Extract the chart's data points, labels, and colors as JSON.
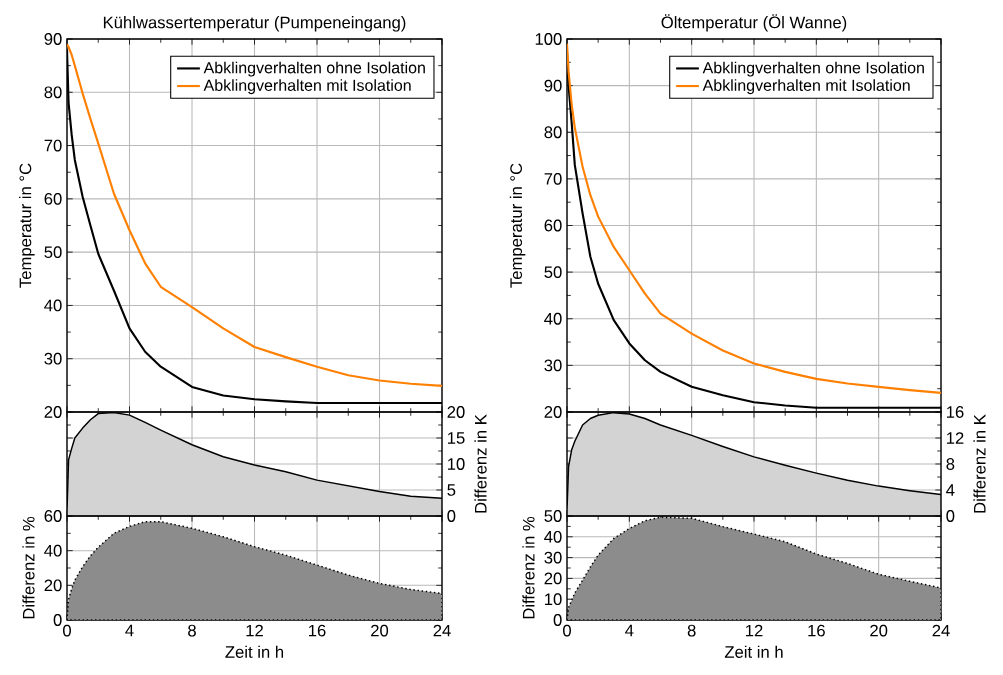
{
  "chart_data": [
    {
      "type": "line",
      "title": "Kühlwassertemperatur (Pumpeneingang)",
      "ylabel": "Temperatur in °C",
      "x": [
        0,
        0.1,
        0.3,
        0.5,
        1,
        1.5,
        2,
        3,
        4,
        5,
        6,
        8,
        10,
        12,
        14,
        16,
        18,
        20,
        22,
        24
      ],
      "xlim": [
        0,
        24
      ],
      "xticks": [
        0,
        4,
        8,
        12,
        16,
        20,
        24
      ],
      "ylim": [
        20,
        90
      ],
      "yticks": [
        20,
        30,
        40,
        50,
        60,
        70,
        80,
        90
      ],
      "tick_labels": "y",
      "grid": true,
      "legend": "top right",
      "series": [
        {
          "name": "Abklingverhalten ohne Isolation",
          "color": "#000000",
          "values": [
            88,
            78,
            72,
            67.3,
            60.4,
            55,
            49.7,
            42.8,
            35.7,
            31.3,
            28.5,
            24.7,
            23.1,
            22.4,
            22,
            21.7,
            21.7,
            21.7,
            21.7,
            21.7
          ]
        },
        {
          "name": "Abklingverhalten mit Isolation",
          "color": "#ff8000",
          "values": [
            89,
            88.5,
            87,
            85,
            79.8,
            75,
            70.4,
            61,
            54.1,
            47.9,
            43.5,
            39.7,
            35.7,
            32.2,
            30.3,
            28.5,
            26.9,
            25.9,
            25.3,
            24.9
          ]
        }
      ]
    },
    {
      "type": "area",
      "ylabel": "Differenz in K",
      "x": [
        0,
        0.1,
        0.3,
        0.5,
        1,
        1.5,
        2,
        3,
        4,
        5,
        6,
        8,
        10,
        12,
        14,
        16,
        18,
        20,
        22,
        24
      ],
      "xlim": [
        0,
        24
      ],
      "xticks": [
        0,
        4,
        8,
        12,
        16,
        20,
        24
      ],
      "ylim": [
        0,
        20
      ],
      "yticks": [
        0,
        5,
        10,
        15,
        20
      ],
      "tick_labels": "y",
      "grid": true,
      "series": [
        {
          "color": "#d3d3d3",
          "values": [
            1,
            10.8,
            13,
            15,
            16.9,
            18.5,
            19.7,
            19.9,
            19.4,
            18,
            16.5,
            13.7,
            11.4,
            9.8,
            8.5,
            6.9,
            5.8,
            4.7,
            3.8,
            3.4
          ]
        }
      ]
    },
    {
      "type": "area",
      "xlabel": "Zeit in h",
      "ylabel": "Differenz in %",
      "x": [
        0,
        0.1,
        0.3,
        0.5,
        1,
        1.5,
        2,
        3,
        4,
        5,
        6,
        8,
        10,
        12,
        14,
        16,
        18,
        20,
        22,
        24
      ],
      "xlim": [
        0,
        24
      ],
      "xticks": [
        0,
        4,
        8,
        12,
        16,
        20,
        24
      ],
      "ylim": [
        0,
        60
      ],
      "yticks": [
        0,
        20,
        40,
        60
      ],
      "grid": true,
      "line_style": "dotted",
      "series": [
        {
          "color": "#8c8c8c",
          "values": [
            0,
            12,
            18,
            23,
            30.7,
            37,
            42,
            50,
            54,
            56.7,
            56.7,
            52.9,
            48,
            42.3,
            37.4,
            31.7,
            25.9,
            21.1,
            17.6,
            15.3
          ]
        }
      ]
    },
    {
      "type": "line",
      "title": "Öltemperatur (Öl Wanne)",
      "ylabel": "Temperatur in °C",
      "x": [
        0,
        0.1,
        0.3,
        0.5,
        1,
        1.5,
        2,
        3,
        4,
        5,
        6,
        8,
        10,
        12,
        14,
        16,
        18,
        20,
        22,
        24
      ],
      "xlim": [
        0,
        24
      ],
      "xticks": [
        0,
        4,
        8,
        12,
        16,
        20,
        24
      ],
      "ylim": [
        20,
        100
      ],
      "yticks": [
        20,
        30,
        40,
        50,
        60,
        70,
        80,
        90,
        100
      ],
      "tick_labels": "y",
      "grid": true,
      "legend": "top right",
      "series": [
        {
          "name": "Abklingverhalten ohne Isolation",
          "color": "#000000",
          "values": [
            97,
            90,
            82,
            73,
            62.6,
            53.3,
            47.5,
            39.7,
            34.7,
            31.1,
            28.6,
            25.4,
            23.6,
            22.1,
            21.4,
            20.9,
            20.9,
            20.9,
            20.9,
            20.9
          ]
        },
        {
          "name": "Abklingverhalten mit Isolation",
          "color": "#ff8000",
          "values": [
            99,
            93,
            86,
            81,
            72.6,
            66.5,
            61.9,
            55.4,
            50.4,
            45.4,
            41.1,
            36.8,
            33.2,
            30.4,
            28.6,
            27.1,
            26.1,
            25.4,
            24.7,
            24.1
          ]
        }
      ]
    },
    {
      "type": "area",
      "ylabel": "Differenz in K",
      "x": [
        0,
        0.1,
        0.3,
        0.5,
        1,
        1.5,
        2,
        3,
        4,
        5,
        6,
        8,
        10,
        12,
        14,
        16,
        18,
        20,
        22,
        24
      ],
      "xlim": [
        0,
        24
      ],
      "xticks": [
        0,
        4,
        8,
        12,
        16,
        20,
        24
      ],
      "ylim": [
        0,
        16
      ],
      "yticks": [
        0,
        4,
        8,
        12,
        16
      ],
      "tick_labels": "y",
      "grid": true,
      "series": [
        {
          "color": "#d3d3d3",
          "values": [
            1,
            7.6,
            10.2,
            11.5,
            14,
            15,
            15.5,
            15.9,
            15.7,
            15,
            14,
            12.4,
            10.7,
            9.1,
            7.8,
            6.6,
            5.5,
            4.6,
            3.9,
            3.3
          ]
        }
      ]
    },
    {
      "type": "area",
      "xlabel": "Zeit in h",
      "ylabel": "Differenz in %",
      "x": [
        0,
        0.1,
        0.3,
        0.5,
        1,
        1.5,
        2,
        3,
        4,
        5,
        6,
        8,
        10,
        12,
        14,
        16,
        18,
        20,
        22,
        24
      ],
      "xlim": [
        0,
        24
      ],
      "xticks": [
        0,
        4,
        8,
        12,
        16,
        20,
        24
      ],
      "ylim": [
        0,
        50
      ],
      "yticks": [
        0,
        10,
        20,
        30,
        40,
        50
      ],
      "grid": true,
      "line_style": "dotted",
      "series": [
        {
          "color": "#8c8c8c",
          "values": [
            0,
            6,
            9.5,
            13,
            19.1,
            25.5,
            31.2,
            39.2,
            44,
            47.7,
            49.4,
            48.9,
            44.9,
            41.3,
            37.6,
            31.7,
            27.2,
            22,
            18.6,
            15.4
          ]
        }
      ]
    }
  ]
}
